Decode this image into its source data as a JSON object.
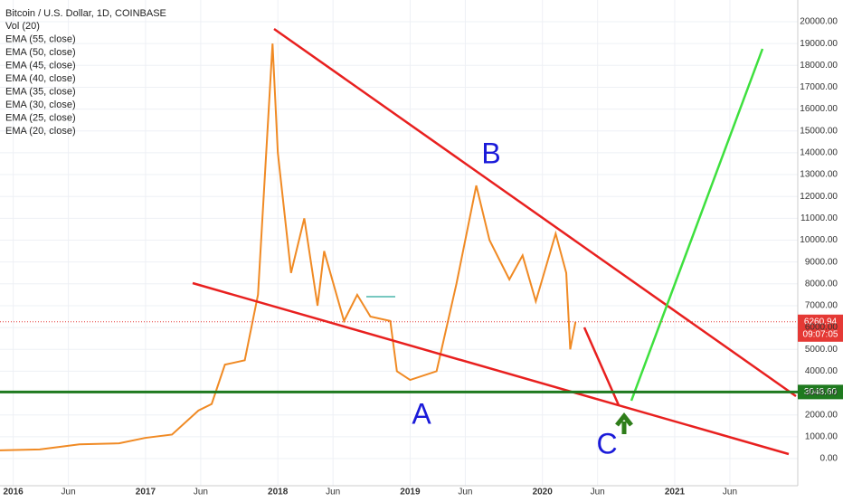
{
  "chart_data": {
    "type": "line",
    "title": "Bitcoin / U.S. Dollar, 1D, COINBASE",
    "indicators": [
      "Vol (20)",
      "EMA (55, close)",
      "EMA (50, close)",
      "EMA (45, close)",
      "EMA (40, close)",
      "EMA (35, close)",
      "EMA (30, close)",
      "EMA (25, close)",
      "EMA (20, close)"
    ],
    "x": [
      2015.9,
      2016.2,
      2016.5,
      2016.8,
      2017.0,
      2017.2,
      2017.4,
      2017.5,
      2017.6,
      2017.75,
      2017.85,
      2017.96,
      2018.0,
      2018.1,
      2018.2,
      2018.3,
      2018.35,
      2018.5,
      2018.6,
      2018.7,
      2018.85,
      2018.9,
      2019.0,
      2019.2,
      2019.35,
      2019.5,
      2019.6,
      2019.75,
      2019.85,
      2019.95,
      2020.1,
      2020.18,
      2020.21,
      2020.25
    ],
    "values": [
      380,
      420,
      650,
      700,
      950,
      1100,
      2200,
      2500,
      4300,
      4500,
      7500,
      19000,
      14000,
      8500,
      11000,
      7000,
      9500,
      6300,
      7500,
      6500,
      6300,
      4000,
      3600,
      4000,
      8000,
      12500,
      10000,
      8200,
      9300,
      7200,
      10300,
      8500,
      5000,
      6260.94
    ],
    "color": "#f08a24",
    "xlim": [
      2015.9,
      2021.93
    ],
    "xticks": [
      2016,
      {
        "value": 2016.417,
        "label": "Jun"
      },
      2017,
      {
        "value": 2017.417,
        "label": "Jun"
      },
      2018,
      {
        "value": 2018.417,
        "label": "Jun"
      },
      2019,
      {
        "value": 2019.417,
        "label": "Jun"
      },
      2020,
      {
        "value": 2020.417,
        "label": "Jun"
      },
      2021,
      {
        "value": 2021.417,
        "label": "Jun"
      }
    ],
    "ylim": [
      -1242,
      20994
    ],
    "yticks": [
      {
        "value": 0,
        "label": "0.00"
      },
      {
        "value": 1000,
        "label": "1000.00"
      },
      {
        "value": 2000,
        "label": "2000.00"
      },
      {
        "value": 3000,
        "label": "3000.00"
      },
      {
        "value": 4000,
        "label": "4000.00"
      },
      {
        "value": 5000,
        "label": "5000.00"
      },
      {
        "value": 6000,
        "label": "6000.00"
      },
      {
        "value": 7000,
        "label": "7000.00"
      },
      {
        "value": 8000,
        "label": "8000.00"
      },
      {
        "value": 9000,
        "label": "9000.00"
      },
      {
        "value": 10000,
        "label": "10000.00"
      },
      {
        "value": 11000,
        "label": "11000.00"
      },
      {
        "value": 12000,
        "label": "12000.00"
      },
      {
        "value": 13000,
        "label": "13000.00"
      },
      {
        "value": 14000,
        "label": "14000.00"
      },
      {
        "value": 15000,
        "label": "15000.00"
      },
      {
        "value": 16000,
        "label": "16000.00"
      },
      {
        "value": 17000,
        "label": "17000.00"
      },
      {
        "value": 18000,
        "label": "18000.00"
      },
      {
        "value": 19000,
        "label": "19000.00"
      },
      {
        "value": 20000,
        "label": "20000.00"
      }
    ],
    "grid": true,
    "last_price": {
      "value": 6260.94,
      "label": "6260.94",
      "color": "#e53935"
    },
    "countdown": "09:07:05",
    "horizontal_line": {
      "value": 3048.6,
      "label": "3048.60",
      "color": "#1f7a1f"
    },
    "annotations": [
      "A",
      "B",
      "C"
    ]
  }
}
